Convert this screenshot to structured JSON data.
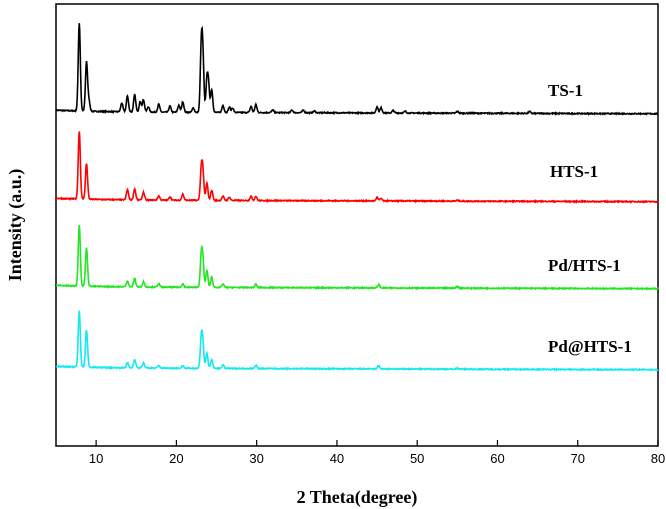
{
  "chart_data": {
    "type": "line",
    "xlabel": "2 Theta(degree)",
    "ylabel": "Intensity (a.u.)",
    "xlim": [
      5,
      80
    ],
    "xticks": [
      10,
      20,
      30,
      40,
      50,
      60,
      70,
      80
    ],
    "yticks_shown": false,
    "grid": false,
    "legend": "none (series names printed beside each curve)",
    "stacking": "curves vertically offset, TS-1 on top, Pd@HTS-1 at bottom",
    "series": [
      {
        "name": "TS-1",
        "color": "#000000",
        "baseline": 0.0,
        "intensity_scale": 1.0,
        "peaks": [
          [
            7.9,
            1.0
          ],
          [
            8.8,
            0.56
          ],
          [
            9.1,
            0.12
          ],
          [
            13.2,
            0.1
          ],
          [
            13.9,
            0.18
          ],
          [
            14.8,
            0.2
          ],
          [
            15.5,
            0.12
          ],
          [
            15.9,
            0.14
          ],
          [
            16.5,
            0.06
          ],
          [
            17.8,
            0.09
          ],
          [
            19.2,
            0.07
          ],
          [
            20.3,
            0.08
          ],
          [
            20.8,
            0.12
          ],
          [
            22.1,
            0.05
          ],
          [
            23.1,
            0.7
          ],
          [
            23.3,
            0.58
          ],
          [
            23.8,
            0.34
          ],
          [
            24.0,
            0.28
          ],
          [
            24.4,
            0.26
          ],
          [
            25.8,
            0.08
          ],
          [
            26.6,
            0.06
          ],
          [
            27.0,
            0.05
          ],
          [
            29.3,
            0.07
          ],
          [
            29.9,
            0.09
          ],
          [
            32.0,
            0.03
          ],
          [
            34.4,
            0.03
          ],
          [
            35.8,
            0.03
          ],
          [
            37.2,
            0.02
          ],
          [
            45.0,
            0.07
          ],
          [
            45.5,
            0.06
          ],
          [
            47.0,
            0.03
          ],
          [
            48.5,
            0.02
          ],
          [
            55.0,
            0.02
          ],
          [
            64.0,
            0.02
          ]
        ]
      },
      {
        "name": "HTS-1",
        "color": "#ff0000",
        "baseline": 0.0,
        "intensity_scale": 1.0,
        "peaks": [
          [
            7.9,
            0.8
          ],
          [
            8.8,
            0.42
          ],
          [
            13.9,
            0.12
          ],
          [
            14.8,
            0.13
          ],
          [
            15.9,
            0.09
          ],
          [
            17.8,
            0.05
          ],
          [
            19.2,
            0.04
          ],
          [
            20.8,
            0.07
          ],
          [
            23.1,
            0.34
          ],
          [
            23.3,
            0.3
          ],
          [
            23.8,
            0.2
          ],
          [
            24.4,
            0.12
          ],
          [
            25.8,
            0.05
          ],
          [
            26.6,
            0.04
          ],
          [
            29.3,
            0.05
          ],
          [
            29.9,
            0.05
          ],
          [
            45.0,
            0.04
          ],
          [
            45.5,
            0.03
          ],
          [
            55.0,
            0.01
          ]
        ]
      },
      {
        "name": "Pd/HTS-1",
        "color": "#22e622",
        "baseline": 0.0,
        "intensity_scale": 1.0,
        "peaks": [
          [
            7.9,
            0.72
          ],
          [
            8.8,
            0.45
          ],
          [
            13.9,
            0.07
          ],
          [
            14.8,
            0.1
          ],
          [
            15.9,
            0.06
          ],
          [
            17.8,
            0.04
          ],
          [
            20.8,
            0.04
          ],
          [
            23.1,
            0.36
          ],
          [
            23.3,
            0.28
          ],
          [
            23.8,
            0.2
          ],
          [
            24.4,
            0.12
          ],
          [
            25.8,
            0.04
          ],
          [
            29.9,
            0.04
          ],
          [
            45.2,
            0.04
          ],
          [
            55.0,
            0.02
          ]
        ]
      },
      {
        "name": "Pd@HTS-1",
        "color": "#14e8f0",
        "baseline": 0.0,
        "intensity_scale": 1.0,
        "peaks": [
          [
            7.9,
            0.66
          ],
          [
            8.8,
            0.44
          ],
          [
            13.9,
            0.06
          ],
          [
            14.8,
            0.1
          ],
          [
            15.9,
            0.06
          ],
          [
            17.8,
            0.03
          ],
          [
            20.8,
            0.03
          ],
          [
            23.1,
            0.34
          ],
          [
            23.3,
            0.26
          ],
          [
            23.8,
            0.18
          ],
          [
            24.4,
            0.1
          ],
          [
            25.8,
            0.04
          ],
          [
            29.9,
            0.04
          ],
          [
            45.2,
            0.04
          ],
          [
            55.0,
            0.01
          ]
        ]
      }
    ]
  }
}
